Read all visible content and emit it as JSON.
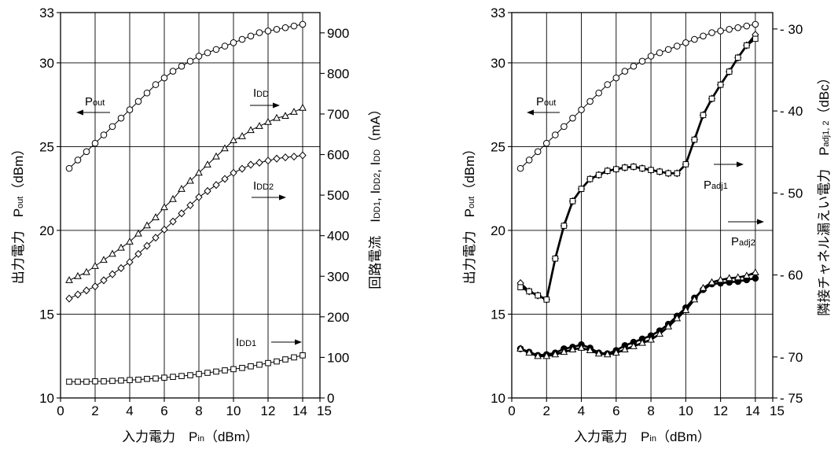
{
  "chart_data": [
    {
      "type": "line",
      "xlabel": {
        "prefix": "入力電力　P",
        "sub": "in",
        "suffix": "（dBm）"
      },
      "ylabel_left": {
        "prefix": "出力電力　P",
        "sub": "out",
        "suffix": "（dBm）"
      },
      "ylabel_right": {
        "p1": "回路電流　I",
        "s1": "DD1",
        "p2": ", I",
        "s2": "DD2",
        "p3": ", I",
        "s3": "DD",
        "suffix": "（mA）"
      },
      "xlim": [
        0,
        15
      ],
      "x_ticks": [
        "0",
        "2",
        "4",
        "6",
        "8",
        "10",
        "12",
        "14",
        "15"
      ],
      "ylim_left": [
        10,
        33
      ],
      "y_ticks_left": [
        "10",
        "15",
        "20",
        "25",
        "30",
        "33"
      ],
      "ylim_right": [
        0,
        950
      ],
      "y_ticks_right": [
        "0",
        "100",
        "200",
        "300",
        "400",
        "500",
        "600",
        "700",
        "800",
        "900"
      ],
      "grid": true,
      "series": [
        {
          "name": {
            "base": "P",
            "sub": "out"
          },
          "axis": "left",
          "marker": "circle",
          "x": [
            0.5,
            1,
            1.5,
            2,
            2.5,
            3,
            3.5,
            4,
            4.5,
            5,
            5.5,
            6,
            6.5,
            7,
            7.5,
            8,
            8.5,
            9,
            9.5,
            10,
            10.5,
            11,
            11.5,
            12,
            12.5,
            13,
            13.5,
            14
          ],
          "y": [
            23.7,
            24.2,
            24.7,
            25.2,
            25.7,
            26.2,
            26.7,
            27.2,
            27.7,
            28.2,
            28.7,
            29.1,
            29.5,
            29.8,
            30.1,
            30.4,
            30.6,
            30.8,
            31.0,
            31.2,
            31.4,
            31.6,
            31.8,
            31.9,
            32.0,
            32.1,
            32.2,
            32.3
          ]
        },
        {
          "name": {
            "base": "I",
            "sub": "DD"
          },
          "axis": "right",
          "marker": "triangle",
          "x": [
            0.5,
            1,
            1.5,
            2,
            2.5,
            3,
            3.5,
            4,
            4.5,
            5,
            5.5,
            6,
            6.5,
            7,
            7.5,
            8,
            8.5,
            9,
            9.5,
            10,
            10.5,
            11,
            11.5,
            12,
            12.5,
            13,
            13.5,
            14
          ],
          "y": [
            290,
            300,
            310,
            325,
            340,
            355,
            370,
            385,
            405,
            425,
            445,
            470,
            490,
            515,
            535,
            555,
            575,
            595,
            615,
            635,
            645,
            660,
            670,
            680,
            690,
            695,
            705,
            715
          ]
        },
        {
          "name": {
            "base": "I",
            "sub": "DD2"
          },
          "axis": "right",
          "marker": "diamond",
          "x": [
            0.5,
            1,
            1.5,
            2,
            2.5,
            3,
            3.5,
            4,
            4.5,
            5,
            5.5,
            6,
            6.5,
            7,
            7.5,
            8,
            8.5,
            9,
            9.5,
            10,
            10.5,
            11,
            11.5,
            12,
            12.5,
            13,
            13.5,
            14
          ],
          "y": [
            245,
            255,
            265,
            275,
            290,
            305,
            320,
            335,
            355,
            375,
            395,
            415,
            435,
            455,
            475,
            495,
            510,
            525,
            540,
            555,
            565,
            575,
            580,
            585,
            590,
            593,
            595,
            598
          ]
        },
        {
          "name": {
            "base": "I",
            "sub": "DD1"
          },
          "axis": "right",
          "marker": "square",
          "x": [
            0.5,
            1,
            1.5,
            2,
            2.5,
            3,
            3.5,
            4,
            4.5,
            5,
            5.5,
            6,
            6.5,
            7,
            7.5,
            8,
            8.5,
            9,
            9.5,
            10,
            10.5,
            11,
            11.5,
            12,
            12.5,
            13,
            13.5,
            14
          ],
          "y": [
            40,
            40,
            40,
            41,
            41,
            42,
            43,
            44,
            45,
            47,
            48,
            50,
            52,
            54,
            56,
            59,
            62,
            65,
            68,
            71,
            74,
            78,
            82,
            86,
            90,
            95,
            100,
            105
          ]
        }
      ]
    },
    {
      "type": "line",
      "xlabel": {
        "prefix": "入力電力　P",
        "sub": "in",
        "suffix": "（dBm）"
      },
      "ylabel_left": {
        "prefix": "出力電力　P",
        "sub": "out",
        "suffix": "（dBm）"
      },
      "ylabel_right": {
        "p1": "隣接チャネル漏えい電力　P",
        "s1": "adj1, 2",
        "suffix": "（dBc）"
      },
      "xlim": [
        0,
        15
      ],
      "x_ticks": [
        "0",
        "2",
        "4",
        "6",
        "8",
        "10",
        "12",
        "14",
        "15"
      ],
      "ylim_left": [
        10,
        33
      ],
      "y_ticks_left": [
        "10",
        "15",
        "20",
        "25",
        "30",
        "33"
      ],
      "ylim_right": [
        -75,
        -28
      ],
      "y_ticks_right": [
        "- 30",
        "- 40",
        "- 50",
        "- 60",
        "- 70",
        "- 75"
      ],
      "y_ticks_right_values": [
        -30,
        -40,
        -50,
        -60,
        -70,
        -75
      ],
      "grid": true,
      "series": [
        {
          "name": {
            "base": "P",
            "sub": "out"
          },
          "axis": "left",
          "marker": "circle",
          "x": [
            0.5,
            1,
            1.5,
            2,
            2.5,
            3,
            3.5,
            4,
            4.5,
            5,
            5.5,
            6,
            6.5,
            7,
            7.5,
            8,
            8.5,
            9,
            9.5,
            10,
            10.5,
            11,
            11.5,
            12,
            12.5,
            13,
            13.5,
            14
          ],
          "y": [
            23.7,
            24.2,
            24.7,
            25.2,
            25.7,
            26.2,
            26.7,
            27.2,
            27.7,
            28.2,
            28.7,
            29.1,
            29.5,
            29.8,
            30.1,
            30.4,
            30.6,
            30.8,
            31.0,
            31.2,
            31.4,
            31.6,
            31.8,
            31.9,
            32.0,
            32.1,
            32.2,
            32.3
          ]
        },
        {
          "name": {
            "base": "P",
            "sub": "adj1"
          },
          "axis": "right",
          "marker": "diamond",
          "bold": true,
          "x": [
            0.5,
            1,
            1.5,
            2,
            2.5,
            3,
            3.5,
            4,
            4.5,
            5,
            5.5,
            6,
            6.5,
            7,
            7.5,
            8,
            8.5,
            9,
            9.5,
            10,
            10.5,
            11,
            11.5,
            12,
            12.5,
            13,
            13.5,
            14
          ],
          "y": [
            -61,
            -62,
            -62.5,
            -63,
            -58,
            -54,
            -51,
            -49.5,
            -48.3,
            -47.8,
            -47.3,
            -47.1,
            -46.9,
            -46.8,
            -47,
            -47.2,
            -47.4,
            -47.6,
            -47.6,
            -46.5,
            -43.5,
            -40.5,
            -38.5,
            -36.8,
            -35.2,
            -33.5,
            -32,
            -30.7
          ]
        },
        {
          "name": {
            "base": "P",
            "sub": "adj1"
          },
          "axis": "right",
          "marker": "square",
          "bold": true,
          "x": [
            0.5,
            1,
            1.5,
            2,
            2.5,
            3,
            3.5,
            4,
            4.5,
            5,
            5.5,
            6,
            6.5,
            7,
            7.5,
            8,
            8.5,
            9,
            9.5,
            10,
            10.5,
            11,
            11.5,
            12,
            12.5,
            13,
            13.5,
            14
          ],
          "y": [
            -61.5,
            -62,
            -62.5,
            -63,
            -58,
            -54,
            -51,
            -49.5,
            -48.3,
            -47.8,
            -47.3,
            -47.1,
            -46.9,
            -46.8,
            -47,
            -47.2,
            -47.4,
            -47.6,
            -47.6,
            -46.5,
            -43.5,
            -40.5,
            -38.5,
            -36.8,
            -35.2,
            -33.5,
            -32,
            -31.2
          ]
        },
        {
          "name": {
            "base": "P",
            "sub": "adj2"
          },
          "axis": "right",
          "marker": "dot",
          "bold": true,
          "x": [
            0.5,
            1,
            1.5,
            2,
            2.5,
            3,
            3.5,
            4,
            4.5,
            5,
            5.5,
            6,
            6.5,
            7,
            7.5,
            8,
            8.5,
            9,
            9.5,
            10,
            10.5,
            11,
            11.5,
            12,
            12.5,
            13,
            13.5,
            14
          ],
          "y": [
            -69,
            -69.4,
            -69.8,
            -69.7,
            -69.5,
            -69,
            -68.8,
            -68.5,
            -68.9,
            -69.5,
            -69.6,
            -69.2,
            -68.6,
            -68.2,
            -67.8,
            -67.4,
            -66.8,
            -66,
            -65,
            -64,
            -62.8,
            -61.8,
            -61.1,
            -61,
            -60.9,
            -60.8,
            -60.6,
            -60.4
          ]
        },
        {
          "name": {
            "base": "P",
            "sub": "adj2"
          },
          "axis": "right",
          "marker": "triangle",
          "bold": true,
          "x": [
            0.5,
            1,
            1.5,
            2,
            2.5,
            3,
            3.5,
            4,
            4.5,
            5,
            5.5,
            6,
            6.5,
            7,
            7.5,
            8,
            8.5,
            9,
            9.5,
            10,
            10.5,
            11,
            11.5,
            12,
            12.5,
            13,
            13.5,
            14
          ],
          "y": [
            -69,
            -69.5,
            -69.9,
            -69.9,
            -69.7,
            -69.4,
            -69.1,
            -68.9,
            -69.2,
            -69.6,
            -69.7,
            -69.5,
            -69.1,
            -68.7,
            -68.3,
            -67.9,
            -67.2,
            -66.3,
            -65.3,
            -64.3,
            -63,
            -61.6,
            -60.9,
            -60.6,
            -60.4,
            -60.3,
            -60.1,
            -59.7
          ]
        }
      ]
    }
  ]
}
